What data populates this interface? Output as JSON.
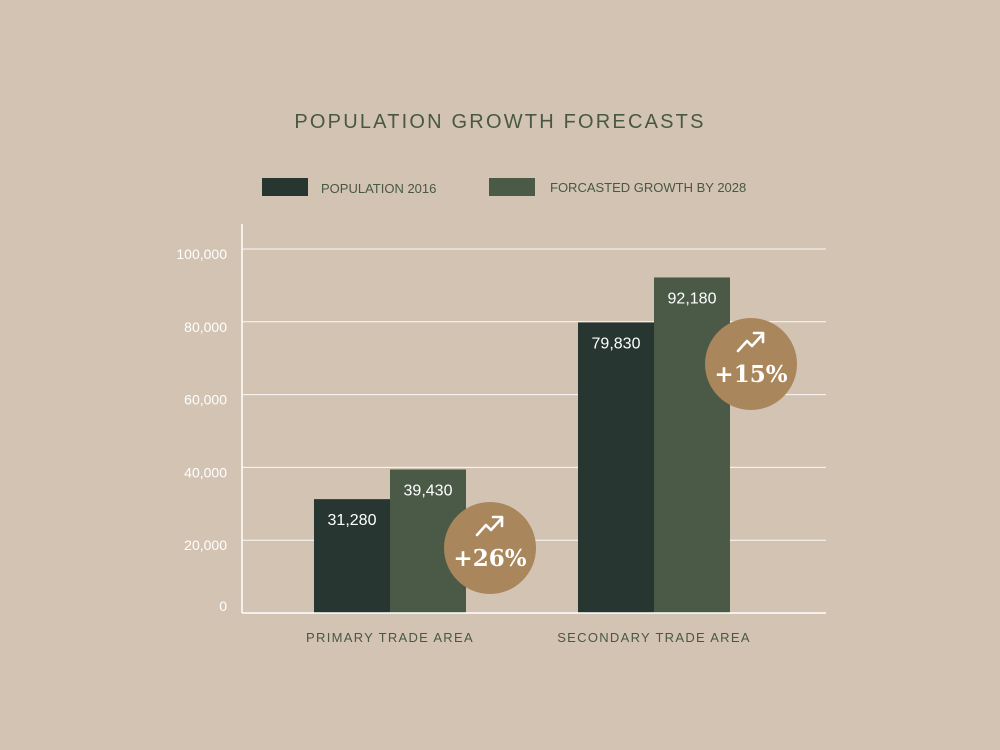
{
  "colors": {
    "background": "#d3c3b3",
    "series_2016": "#273630",
    "series_2028": "#4a5a47",
    "badge": "#a9865b",
    "grid": "#ffffff",
    "tick_text": "#ffffff",
    "title_text": "#485844",
    "category_text": "#485844",
    "legend_text": "#485844",
    "value_text": "#ffffff",
    "badge_text": "#ffffff"
  },
  "chart_data": {
    "type": "bar",
    "title": "POPULATION GROWTH FORECASTS",
    "xlabel": "",
    "ylabel": "",
    "ylim": [
      0,
      100000
    ],
    "yticks": [
      0,
      20000,
      40000,
      60000,
      80000,
      100000
    ],
    "ytick_labels": [
      "0",
      "20,000",
      "40,000",
      "60,000",
      "80,000",
      "100,000"
    ],
    "grid": true,
    "legend_position": "top",
    "categories": [
      "PRIMARY TRADE AREA",
      "SECONDARY TRADE AREA"
    ],
    "series": [
      {
        "name": "POPULATION 2016",
        "color": "#273630",
        "values": [
          31280,
          79830
        ],
        "labels": [
          "31,280",
          "79,830"
        ]
      },
      {
        "name": "FORCASTED GROWTH BY 2028",
        "color": "#4a5a47",
        "values": [
          39430,
          92180
        ],
        "labels": [
          "39,430",
          "92,180"
        ]
      }
    ],
    "annotations": [
      {
        "category_index": 0,
        "text": "+26%",
        "icon": "trend-up-arrow-icon"
      },
      {
        "category_index": 1,
        "text": "+15%",
        "icon": "trend-up-arrow-icon"
      }
    ]
  }
}
